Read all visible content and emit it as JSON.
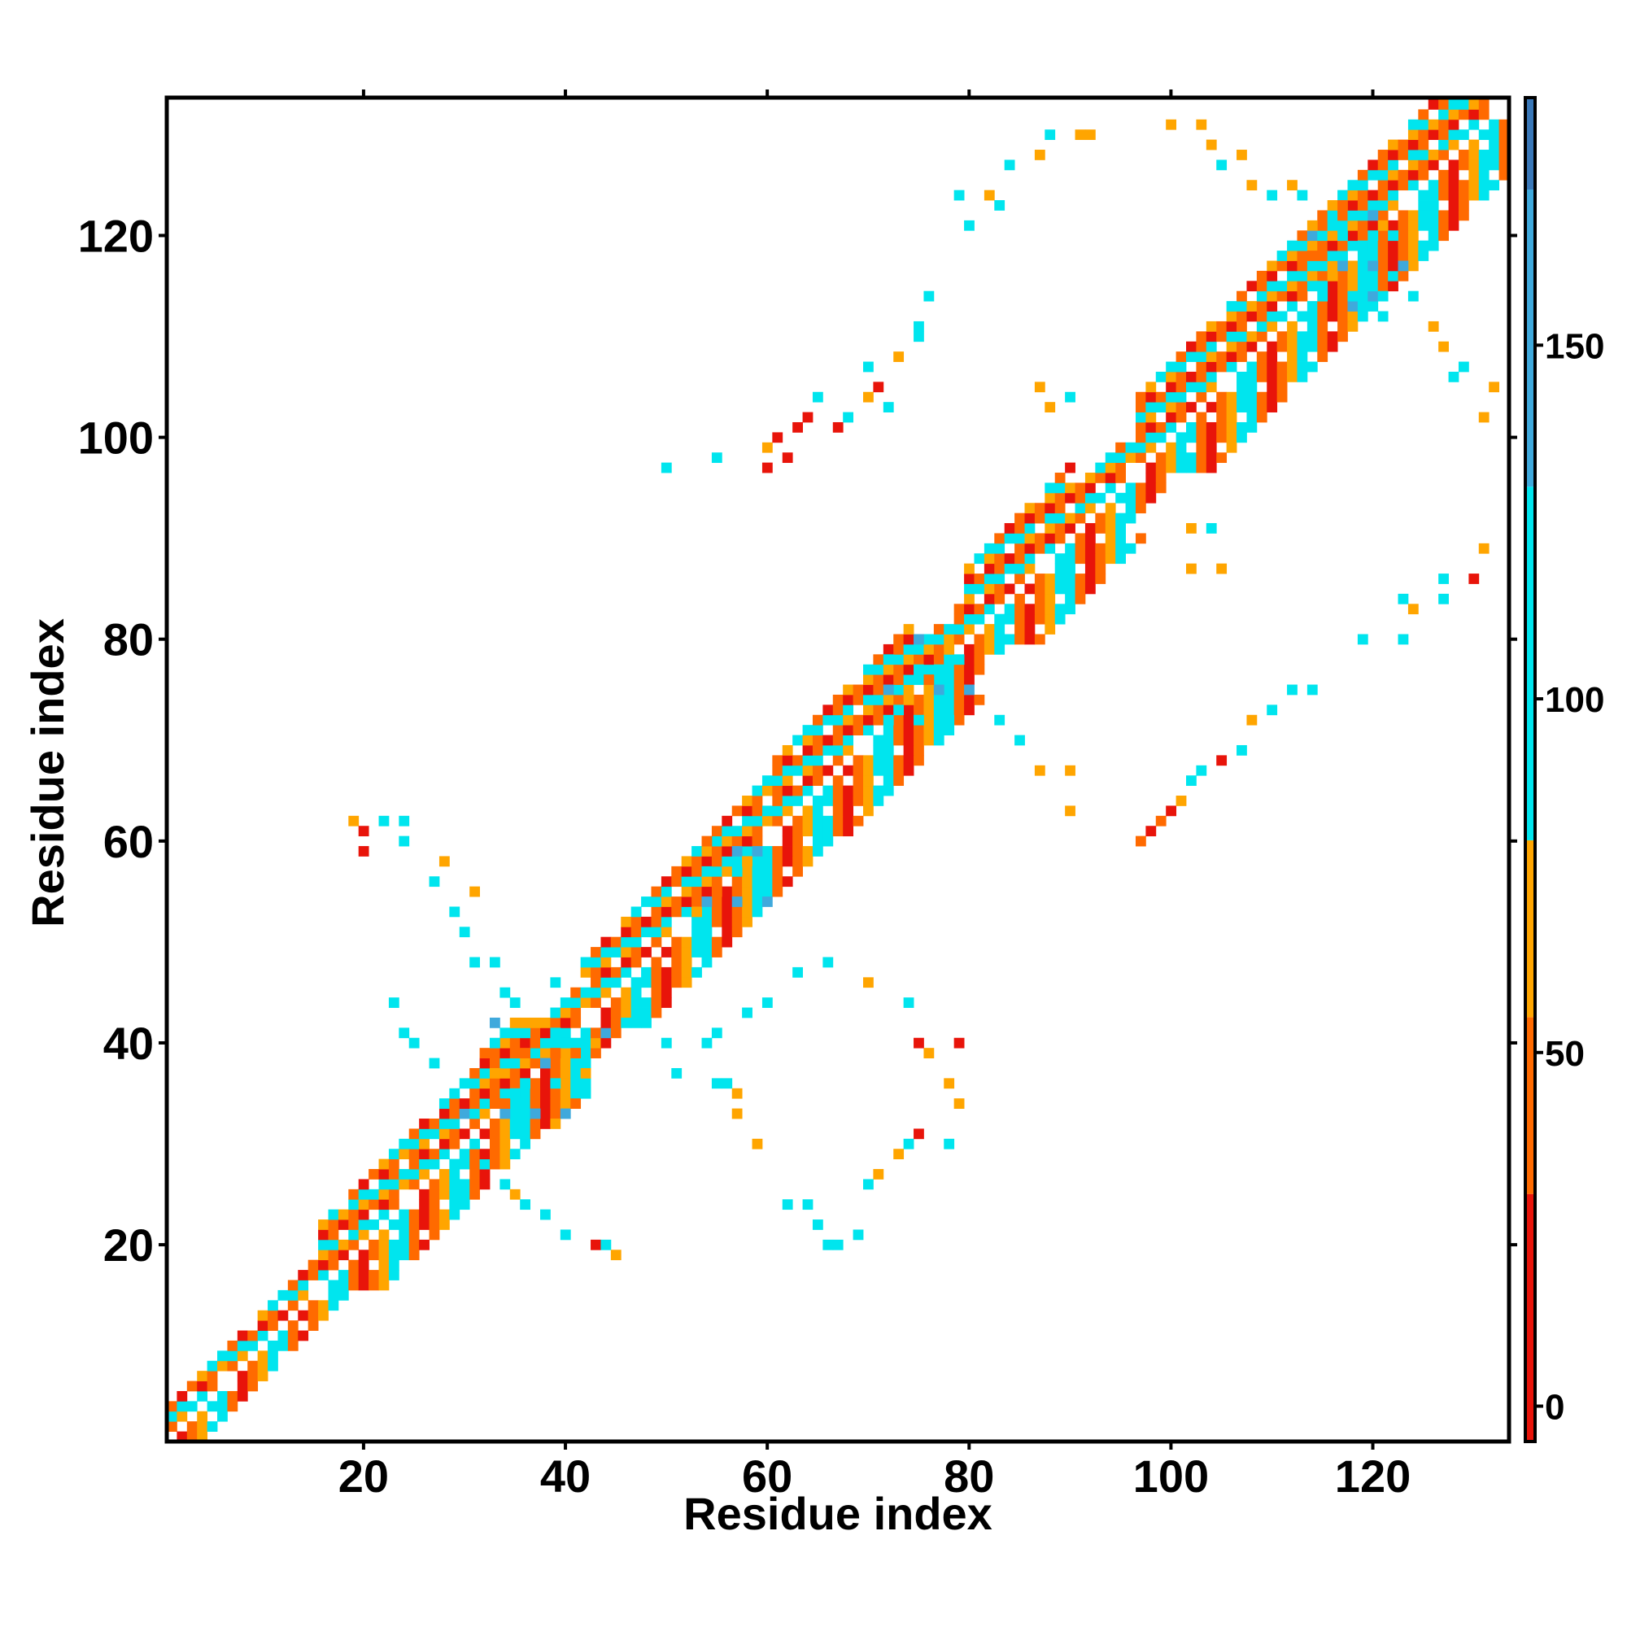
{
  "chart_data": {
    "type": "heatmap",
    "title": "",
    "xlabel": "Residue index",
    "ylabel": "Residue index",
    "xlim": [
      1,
      133
    ],
    "ylim": [
      1,
      133
    ],
    "xticks": [
      20,
      40,
      60,
      80,
      100,
      120
    ],
    "yticks": [
      20,
      40,
      60,
      80,
      100,
      120
    ],
    "colorbar": {
      "range": [
        -5,
        185
      ],
      "ticks": [
        0,
        50,
        100,
        150
      ],
      "segments": [
        {
          "from": -5,
          "to": 30,
          "color": "#e8140a"
        },
        {
          "from": 30,
          "to": 55,
          "color": "#ff6a00"
        },
        {
          "from": 55,
          "to": 80,
          "color": "#ffa500"
        },
        {
          "from": 80,
          "to": 130,
          "color": "#00e5ee"
        },
        {
          "from": 130,
          "to": 172,
          "color": "#3fa9dc"
        },
        {
          "from": 172,
          "to": 185,
          "color": "#3a78b8"
        }
      ]
    },
    "palette": {
      "red": "#e8140a",
      "darkorange": "#ff6a00",
      "orange": "#ffa500",
      "cyan": "#00e5ee",
      "lightblue": "#3fa9dc"
    },
    "diagonal_band": {
      "cycle": [
        "cyan",
        "darkorange",
        "red",
        "darkorange",
        "orange",
        "cyan"
      ],
      "segments": [
        {
          "start": 1,
          "end": 16,
          "halfwidth": 3
        },
        {
          "start": 16,
          "end": 35,
          "halfwidth": 6
        },
        {
          "start": 35,
          "end": 42,
          "halfwidth": 4
        },
        {
          "start": 42,
          "end": 60,
          "halfwidth": 6
        },
        {
          "start": 60,
          "end": 74,
          "halfwidth": 7
        },
        {
          "start": 74,
          "end": 80,
          "halfwidth": 4
        },
        {
          "start": 80,
          "end": 90,
          "halfwidth": 7
        },
        {
          "start": 90,
          "end": 97,
          "halfwidth": 4
        },
        {
          "start": 97,
          "end": 133,
          "halfwidth": 7
        }
      ]
    },
    "contacts": [
      {
        "i": 50,
        "j": 97,
        "c": "cyan"
      },
      {
        "i": 55,
        "j": 98,
        "c": "cyan"
      },
      {
        "i": 20,
        "j": 59,
        "c": "red"
      },
      {
        "i": 19,
        "j": 62,
        "c": "orange"
      },
      {
        "i": 20,
        "j": 61,
        "c": "red"
      },
      {
        "i": 24,
        "j": 60,
        "c": "cyan"
      },
      {
        "i": 22,
        "j": 62,
        "c": "cyan"
      },
      {
        "i": 24,
        "j": 62,
        "c": "cyan"
      },
      {
        "i": 27,
        "j": 56,
        "c": "cyan"
      },
      {
        "i": 28,
        "j": 58,
        "c": "orange"
      },
      {
        "i": 31,
        "j": 55,
        "c": "orange"
      },
      {
        "i": 29,
        "j": 53,
        "c": "cyan"
      },
      {
        "i": 30,
        "j": 51,
        "c": "cyan"
      },
      {
        "i": 31,
        "j": 48,
        "c": "cyan"
      },
      {
        "i": 33,
        "j": 48,
        "c": "cyan"
      },
      {
        "i": 34,
        "j": 45,
        "c": "cyan"
      },
      {
        "i": 33,
        "j": 42,
        "c": "lightblue"
      },
      {
        "i": 35,
        "j": 44,
        "c": "cyan"
      },
      {
        "i": 39,
        "j": 46,
        "c": "cyan"
      },
      {
        "i": 42,
        "j": 44,
        "c": "orange"
      },
      {
        "i": 43,
        "j": 40,
        "c": "orange"
      },
      {
        "i": 44,
        "j": 41,
        "c": "lightblue"
      },
      {
        "i": 46,
        "j": 42,
        "c": "cyan"
      },
      {
        "i": 50,
        "j": 40,
        "c": "cyan"
      },
      {
        "i": 51,
        "j": 37,
        "c": "cyan"
      },
      {
        "i": 55,
        "j": 36,
        "c": "cyan"
      },
      {
        "i": 56,
        "j": 36,
        "c": "cyan"
      },
      {
        "i": 57,
        "j": 35,
        "c": "orange"
      },
      {
        "i": 57,
        "j": 33,
        "c": "orange"
      },
      {
        "i": 59,
        "j": 30,
        "c": "orange"
      },
      {
        "i": 62,
        "j": 24,
        "c": "cyan"
      },
      {
        "i": 64,
        "j": 24,
        "c": "cyan"
      },
      {
        "i": 65,
        "j": 22,
        "c": "cyan"
      },
      {
        "i": 66,
        "j": 20,
        "c": "cyan"
      },
      {
        "i": 67,
        "j": 20,
        "c": "cyan"
      },
      {
        "i": 69,
        "j": 21,
        "c": "cyan"
      },
      {
        "i": 70,
        "j": 26,
        "c": "cyan"
      },
      {
        "i": 71,
        "j": 27,
        "c": "orange"
      },
      {
        "i": 73,
        "j": 29,
        "c": "orange"
      },
      {
        "i": 74,
        "j": 30,
        "c": "cyan"
      },
      {
        "i": 75,
        "j": 31,
        "c": "red"
      },
      {
        "i": 78,
        "j": 30,
        "c": "cyan"
      },
      {
        "i": 79,
        "j": 34,
        "c": "orange"
      },
      {
        "i": 78,
        "j": 36,
        "c": "orange"
      },
      {
        "i": 76,
        "j": 39,
        "c": "orange"
      },
      {
        "i": 75,
        "j": 40,
        "c": "red"
      },
      {
        "i": 79,
        "j": 40,
        "c": "red"
      },
      {
        "i": 74,
        "j": 44,
        "c": "cyan"
      },
      {
        "i": 70,
        "j": 46,
        "c": "orange"
      },
      {
        "i": 66,
        "j": 48,
        "c": "cyan"
      },
      {
        "i": 63,
        "j": 47,
        "c": "cyan"
      },
      {
        "i": 60,
        "j": 44,
        "c": "cyan"
      },
      {
        "i": 58,
        "j": 43,
        "c": "cyan"
      },
      {
        "i": 55,
        "j": 41,
        "c": "cyan"
      },
      {
        "i": 54,
        "j": 40,
        "c": "cyan"
      },
      {
        "i": 23,
        "j": 44,
        "c": "cyan"
      },
      {
        "i": 24,
        "j": 41,
        "c": "cyan"
      },
      {
        "i": 25,
        "j": 40,
        "c": "cyan"
      },
      {
        "i": 27,
        "j": 38,
        "c": "cyan"
      },
      {
        "i": 28,
        "j": 34,
        "c": "cyan"
      },
      {
        "i": 30,
        "j": 33,
        "c": "lightblue"
      },
      {
        "i": 31,
        "j": 30,
        "c": "cyan"
      },
      {
        "i": 32,
        "j": 28,
        "c": "cyan"
      },
      {
        "i": 34,
        "j": 26,
        "c": "cyan"
      },
      {
        "i": 35,
        "j": 25,
        "c": "orange"
      },
      {
        "i": 36,
        "j": 24,
        "c": "cyan"
      },
      {
        "i": 38,
        "j": 23,
        "c": "cyan"
      },
      {
        "i": 40,
        "j": 21,
        "c": "cyan"
      },
      {
        "i": 43,
        "j": 20,
        "c": "red"
      },
      {
        "i": 44,
        "j": 20,
        "c": "cyan"
      },
      {
        "i": 45,
        "j": 19,
        "c": "orange"
      },
      {
        "i": 97,
        "j": 60,
        "c": "darkorange"
      },
      {
        "i": 98,
        "j": 61,
        "c": "red"
      },
      {
        "i": 99,
        "j": 62,
        "c": "darkorange"
      },
      {
        "i": 100,
        "j": 63,
        "c": "red"
      },
      {
        "i": 101,
        "j": 64,
        "c": "orange"
      },
      {
        "i": 102,
        "j": 66,
        "c": "cyan"
      },
      {
        "i": 103,
        "j": 67,
        "c": "cyan"
      },
      {
        "i": 105,
        "j": 68,
        "c": "red"
      },
      {
        "i": 107,
        "j": 69,
        "c": "cyan"
      },
      {
        "i": 108,
        "j": 72,
        "c": "orange"
      },
      {
        "i": 110,
        "j": 73,
        "c": "cyan"
      },
      {
        "i": 112,
        "j": 75,
        "c": "cyan"
      },
      {
        "i": 114,
        "j": 75,
        "c": "cyan"
      },
      {
        "i": 119,
        "j": 80,
        "c": "cyan"
      },
      {
        "i": 123,
        "j": 80,
        "c": "cyan"
      },
      {
        "i": 123,
        "j": 84,
        "c": "cyan"
      },
      {
        "i": 127,
        "j": 86,
        "c": "cyan"
      },
      {
        "i": 130,
        "j": 86,
        "c": "red"
      },
      {
        "i": 131,
        "j": 89,
        "c": "orange"
      },
      {
        "i": 127,
        "j": 84,
        "c": "cyan"
      },
      {
        "i": 124,
        "j": 83,
        "c": "orange"
      },
      {
        "i": 102,
        "j": 91,
        "c": "orange"
      },
      {
        "i": 104,
        "j": 91,
        "c": "cyan"
      },
      {
        "i": 105,
        "j": 87,
        "c": "orange"
      },
      {
        "i": 102,
        "j": 87,
        "c": "orange"
      },
      {
        "i": 90,
        "j": 104,
        "c": "cyan"
      },
      {
        "i": 88,
        "j": 103,
        "c": "orange"
      },
      {
        "i": 87,
        "j": 105,
        "c": "orange"
      },
      {
        "i": 90,
        "j": 67,
        "c": "orange"
      },
      {
        "i": 90,
        "j": 63,
        "c": "orange"
      },
      {
        "i": 87,
        "j": 67,
        "c": "orange"
      },
      {
        "i": 85,
        "j": 70,
        "c": "cyan"
      },
      {
        "i": 83,
        "j": 72,
        "c": "cyan"
      },
      {
        "i": 60,
        "j": 99,
        "c": "orange"
      },
      {
        "i": 61,
        "j": 100,
        "c": "red"
      },
      {
        "i": 63,
        "j": 101,
        "c": "red"
      },
      {
        "i": 64,
        "j": 102,
        "c": "red"
      },
      {
        "i": 65,
        "j": 104,
        "c": "cyan"
      },
      {
        "i": 67,
        "j": 101,
        "c": "red"
      },
      {
        "i": 68,
        "j": 102,
        "c": "cyan"
      },
      {
        "i": 70,
        "j": 104,
        "c": "orange"
      },
      {
        "i": 71,
        "j": 105,
        "c": "red"
      },
      {
        "i": 72,
        "j": 103,
        "c": "cyan"
      },
      {
        "i": 70,
        "j": 107,
        "c": "cyan"
      },
      {
        "i": 73,
        "j": 108,
        "c": "orange"
      },
      {
        "i": 75,
        "j": 111,
        "c": "cyan"
      },
      {
        "i": 76,
        "j": 114,
        "c": "cyan"
      },
      {
        "i": 75,
        "j": 110,
        "c": "cyan"
      },
      {
        "i": 60,
        "j": 97,
        "c": "red"
      },
      {
        "i": 62,
        "j": 98,
        "c": "red"
      },
      {
        "i": 80,
        "j": 121,
        "c": "cyan"
      },
      {
        "i": 79,
        "j": 124,
        "c": "cyan"
      },
      {
        "i": 82,
        "j": 124,
        "c": "orange"
      },
      {
        "i": 83,
        "j": 123,
        "c": "cyan"
      },
      {
        "i": 84,
        "j": 127,
        "c": "cyan"
      },
      {
        "i": 87,
        "j": 128,
        "c": "orange"
      },
      {
        "i": 88,
        "j": 130,
        "c": "cyan"
      },
      {
        "i": 91,
        "j": 130,
        "c": "orange"
      },
      {
        "i": 92,
        "j": 130,
        "c": "orange"
      },
      {
        "i": 100,
        "j": 131,
        "c": "orange"
      },
      {
        "i": 103,
        "j": 131,
        "c": "orange"
      },
      {
        "i": 104,
        "j": 129,
        "c": "orange"
      },
      {
        "i": 105,
        "j": 127,
        "c": "cyan"
      },
      {
        "i": 107,
        "j": 128,
        "c": "orange"
      },
      {
        "i": 108,
        "j": 125,
        "c": "orange"
      },
      {
        "i": 110,
        "j": 124,
        "c": "cyan"
      },
      {
        "i": 112,
        "j": 125,
        "c": "orange"
      },
      {
        "i": 120,
        "j": 114,
        "c": "lightblue"
      },
      {
        "i": 122,
        "j": 116,
        "c": "cyan"
      },
      {
        "i": 124,
        "j": 114,
        "c": "cyan"
      },
      {
        "i": 126,
        "j": 111,
        "c": "orange"
      },
      {
        "i": 127,
        "j": 109,
        "c": "orange"
      },
      {
        "i": 129,
        "j": 107,
        "c": "cyan"
      },
      {
        "i": 132,
        "j": 105,
        "c": "orange"
      },
      {
        "i": 131,
        "j": 102,
        "c": "orange"
      },
      {
        "i": 128,
        "j": 106,
        "c": "cyan"
      },
      {
        "i": 121,
        "j": 112,
        "c": "cyan"
      },
      {
        "i": 118,
        "j": 113,
        "c": "lightblue"
      },
      {
        "i": 114,
        "j": 120,
        "c": "lightblue"
      },
      {
        "i": 116,
        "j": 122,
        "c": "cyan"
      },
      {
        "i": 113,
        "j": 124,
        "c": "cyan"
      }
    ],
    "hubs": [
      {
        "i": 37,
        "j": 37,
        "radius": 5
      },
      {
        "i": 56,
        "j": 56,
        "radius": 4
      },
      {
        "i": 75,
        "j": 75,
        "radius": 5
      },
      {
        "i": 118,
        "j": 118,
        "radius": 5
      }
    ]
  }
}
